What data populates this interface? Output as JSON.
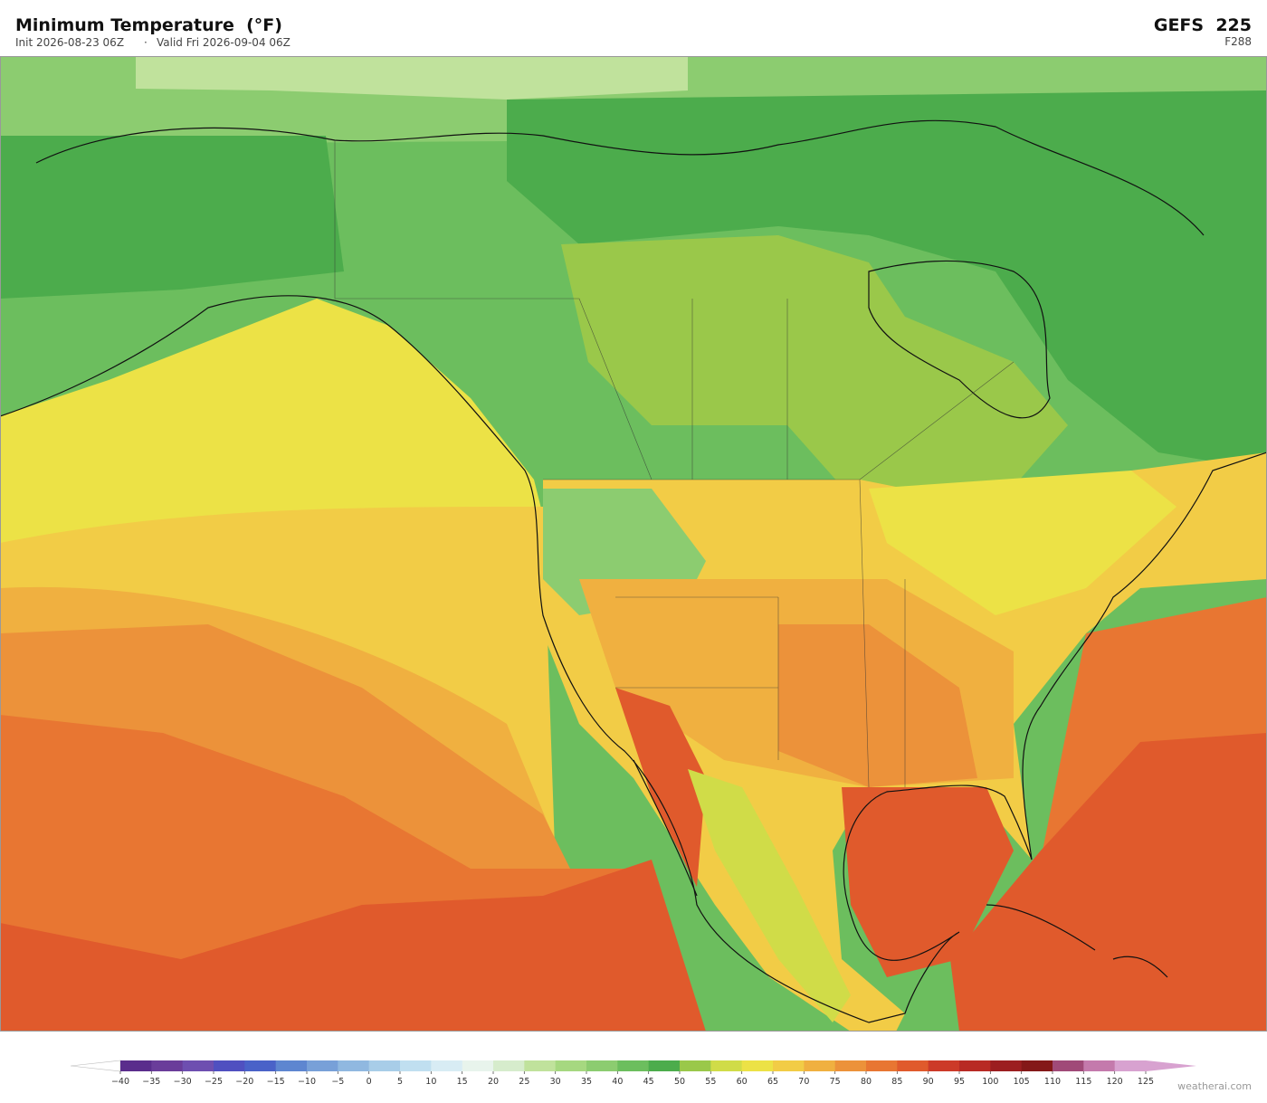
{
  "header": {
    "title": "Minimum Temperature  (°F)",
    "init": "Init 2026-08-23 06Z",
    "valid": "Valid Fri 2026-09-04 06Z",
    "model": "GEFS  225",
    "forecast_hour": "F288"
  },
  "colorbar": {
    "ticks": [
      {
        "value": -40,
        "label": "−40"
      },
      {
        "value": -35,
        "label": "−35"
      },
      {
        "value": -30,
        "label": "−30"
      },
      {
        "value": -25,
        "label": "−25"
      },
      {
        "value": -20,
        "label": "−20"
      },
      {
        "value": -15,
        "label": "−15"
      },
      {
        "value": -10,
        "label": "−10"
      },
      {
        "value": -5,
        "label": "−5"
      },
      0,
      5,
      10,
      15,
      20,
      25,
      30,
      35,
      40,
      45,
      50,
      55,
      60,
      65,
      70,
      75,
      80,
      85,
      90,
      95,
      100,
      105,
      110,
      115,
      120,
      125
    ],
    "colors": [
      "#5a2d8c",
      "#6a3d9a",
      "#6e4fb0",
      "#5050c0",
      "#4a62c8",
      "#5e86d0",
      "#78a0d8",
      "#90b8e0",
      "#a8cde8",
      "#c0dff0",
      "#d8ecf4",
      "#e8f4ec",
      "#d6eccc",
      "#c0e29c",
      "#a6d880",
      "#8ccc70",
      "#6cbe5e",
      "#4cac4c",
      "#9ac84a",
      "#d0dc48",
      "#ece246",
      "#f2cc46",
      "#f0b040",
      "#ec923a",
      "#e87632",
      "#e05a2c",
      "#cc3a28",
      "#b82a24",
      "#9c1e20",
      "#841818",
      "#a04a78",
      "#c47aac",
      "#d8a2d0"
    ],
    "under_color": "#ffffff",
    "over_color": "#d8a2d0"
  },
  "footer": {
    "credit": "weatherai.com"
  }
}
